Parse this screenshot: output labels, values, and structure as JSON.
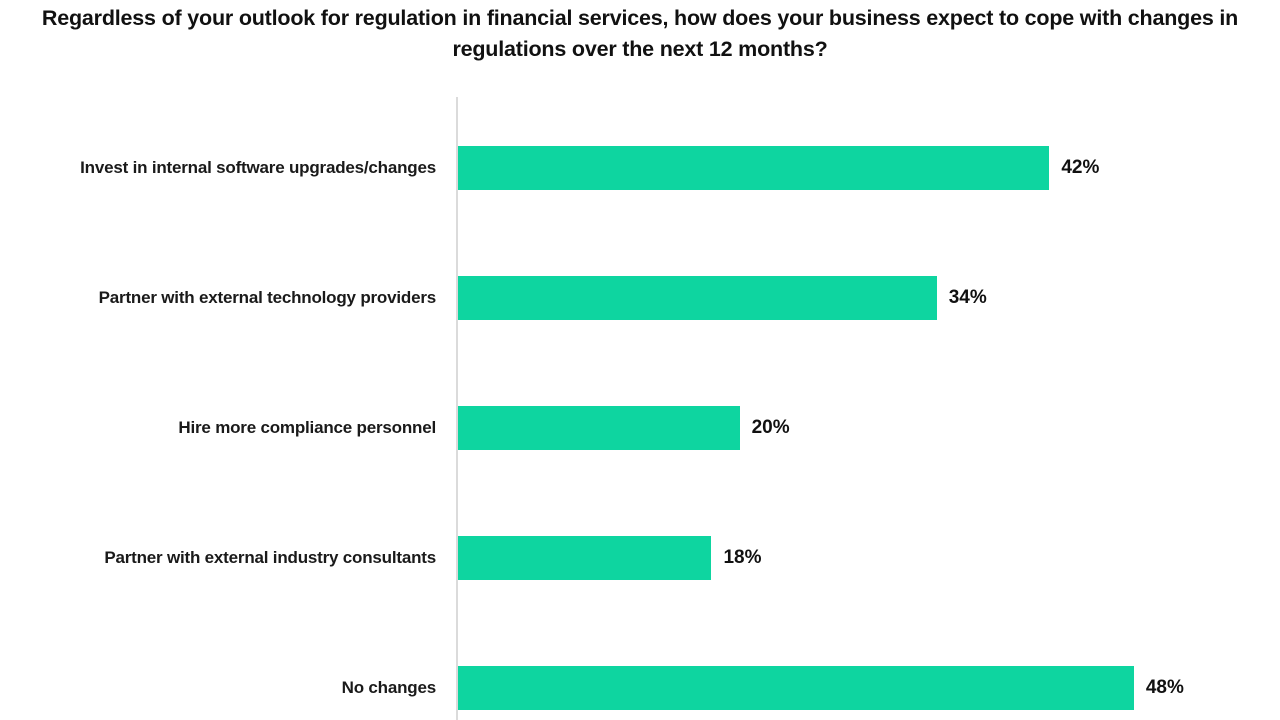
{
  "chart_data": {
    "type": "bar",
    "orientation": "horizontal",
    "title": "Regardless of your outlook for regulation in financial services, how does your business expect to cope with changes in regulations over the next 12 months?",
    "categories": [
      "Invest in internal software upgrades/changes",
      "Partner with external technology providers",
      "Hire more compliance personnel",
      "Partner with external industry consultants",
      "No changes"
    ],
    "values": [
      42,
      34,
      20,
      18,
      48
    ],
    "value_labels": [
      "42%",
      "34%",
      "20%",
      "18%",
      "48%"
    ],
    "unit": "%",
    "xlim": [
      0,
      58
    ],
    "grid": false,
    "legend": false,
    "bar_color": "#0ED5A0",
    "axis_line_color": "#DBDBDB",
    "text_color": "#1A1A1A",
    "background_color": "#FFFFFF"
  }
}
